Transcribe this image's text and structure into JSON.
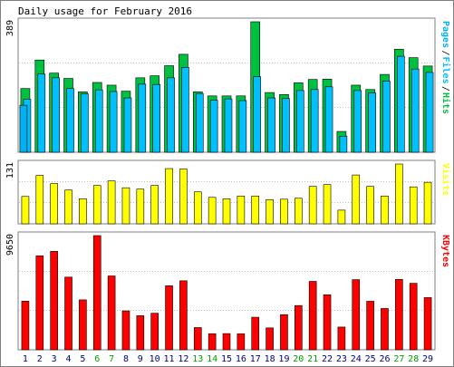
{
  "title": "Daily usage for February 2016",
  "colors": {
    "background": "#ffffff",
    "panel_fill": "#ffffff",
    "panel_border": "#7f7f7f",
    "gridline": "#9a9a9a",
    "weekday_label": "#000080",
    "weekend_label": "#00a000",
    "hits": "#00c040",
    "files": "#00c0ff",
    "pages": "#00b0f0",
    "visits": "#ffff00",
    "kbytes": "#ff0000",
    "bar_outline": "#000000"
  },
  "chart_data": [
    {
      "type": "bar",
      "panel": "hits-files-pages",
      "categories": [
        "1",
        "2",
        "3",
        "4",
        "5",
        "6",
        "7",
        "8",
        "9",
        "10",
        "11",
        "12",
        "13",
        "14",
        "15",
        "16",
        "17",
        "18",
        "19",
        "20",
        "21",
        "22",
        "23",
        "24",
        "25",
        "26",
        "27",
        "28",
        "29"
      ],
      "weekend_days": [
        "6",
        "7",
        "13",
        "14",
        "20",
        "21",
        "27",
        "28"
      ],
      "ymax_label": "389",
      "ylim": [
        0,
        389
      ],
      "legend": [
        "Pages",
        "Files",
        "Hits"
      ],
      "legend_placement": "right-vertical",
      "series": [
        {
          "name": "Hits",
          "values": [
            190,
            275,
            236,
            220,
            180,
            208,
            200,
            182,
            222,
            228,
            258,
            292,
            180,
            168,
            168,
            168,
            389,
            178,
            172,
            207,
            217,
            218,
            62,
            200,
            187,
            232,
            307,
            282,
            257
          ]
        },
        {
          "name": "Files",
          "values": [
            158,
            233,
            222,
            190,
            174,
            186,
            181,
            162,
            203,
            202,
            222,
            253,
            175,
            155,
            159,
            154,
            225,
            162,
            160,
            184,
            187,
            195,
            48,
            184,
            177,
            212,
            286,
            248,
            238
          ]
        },
        {
          "name": "Pages",
          "values": [
            140,
            0,
            0,
            0,
            0,
            0,
            0,
            0,
            0,
            0,
            0,
            0,
            0,
            0,
            0,
            0,
            0,
            0,
            0,
            0,
            0,
            0,
            0,
            0,
            0,
            0,
            0,
            0,
            0
          ]
        }
      ]
    },
    {
      "type": "bar",
      "panel": "visits",
      "categories": [
        "1",
        "2",
        "3",
        "4",
        "5",
        "6",
        "7",
        "8",
        "9",
        "10",
        "11",
        "12",
        "13",
        "14",
        "15",
        "16",
        "17",
        "18",
        "19",
        "20",
        "21",
        "22",
        "23",
        "24",
        "25",
        "26",
        "27",
        "28",
        "29"
      ],
      "ymax_label": "131",
      "ylim": [
        0,
        131
      ],
      "legend": [
        "Visits"
      ],
      "legend_placement": "right-vertical",
      "series": [
        {
          "name": "Visits",
          "values": [
            60,
            106,
            88,
            74,
            55,
            84,
            94,
            79,
            76,
            84,
            121,
            120,
            70,
            58,
            55,
            61,
            61,
            53,
            54,
            56,
            82,
            86,
            30,
            107,
            82,
            61,
            131,
            81,
            91
          ]
        }
      ]
    },
    {
      "type": "bar",
      "panel": "kbytes",
      "categories": [
        "1",
        "2",
        "3",
        "4",
        "5",
        "6",
        "7",
        "8",
        "9",
        "10",
        "11",
        "12",
        "13",
        "14",
        "15",
        "16",
        "17",
        "18",
        "19",
        "20",
        "21",
        "22",
        "23",
        "24",
        "25",
        "26",
        "27",
        "28",
        "29"
      ],
      "ymax_label": "9650",
      "ylim": [
        0,
        9650
      ],
      "legend": [
        "KBytes"
      ],
      "legend_placement": "right-vertical",
      "series": [
        {
          "name": "KBytes",
          "values": [
            4110,
            7940,
            8320,
            6140,
            4220,
            9650,
            6240,
            3290,
            2880,
            3090,
            5410,
            5830,
            1880,
            1360,
            1370,
            1350,
            2750,
            1850,
            2970,
            3740,
            5780,
            4650,
            1920,
            5930,
            4100,
            3490,
            5950,
            5620,
            4410
          ]
        }
      ]
    }
  ]
}
